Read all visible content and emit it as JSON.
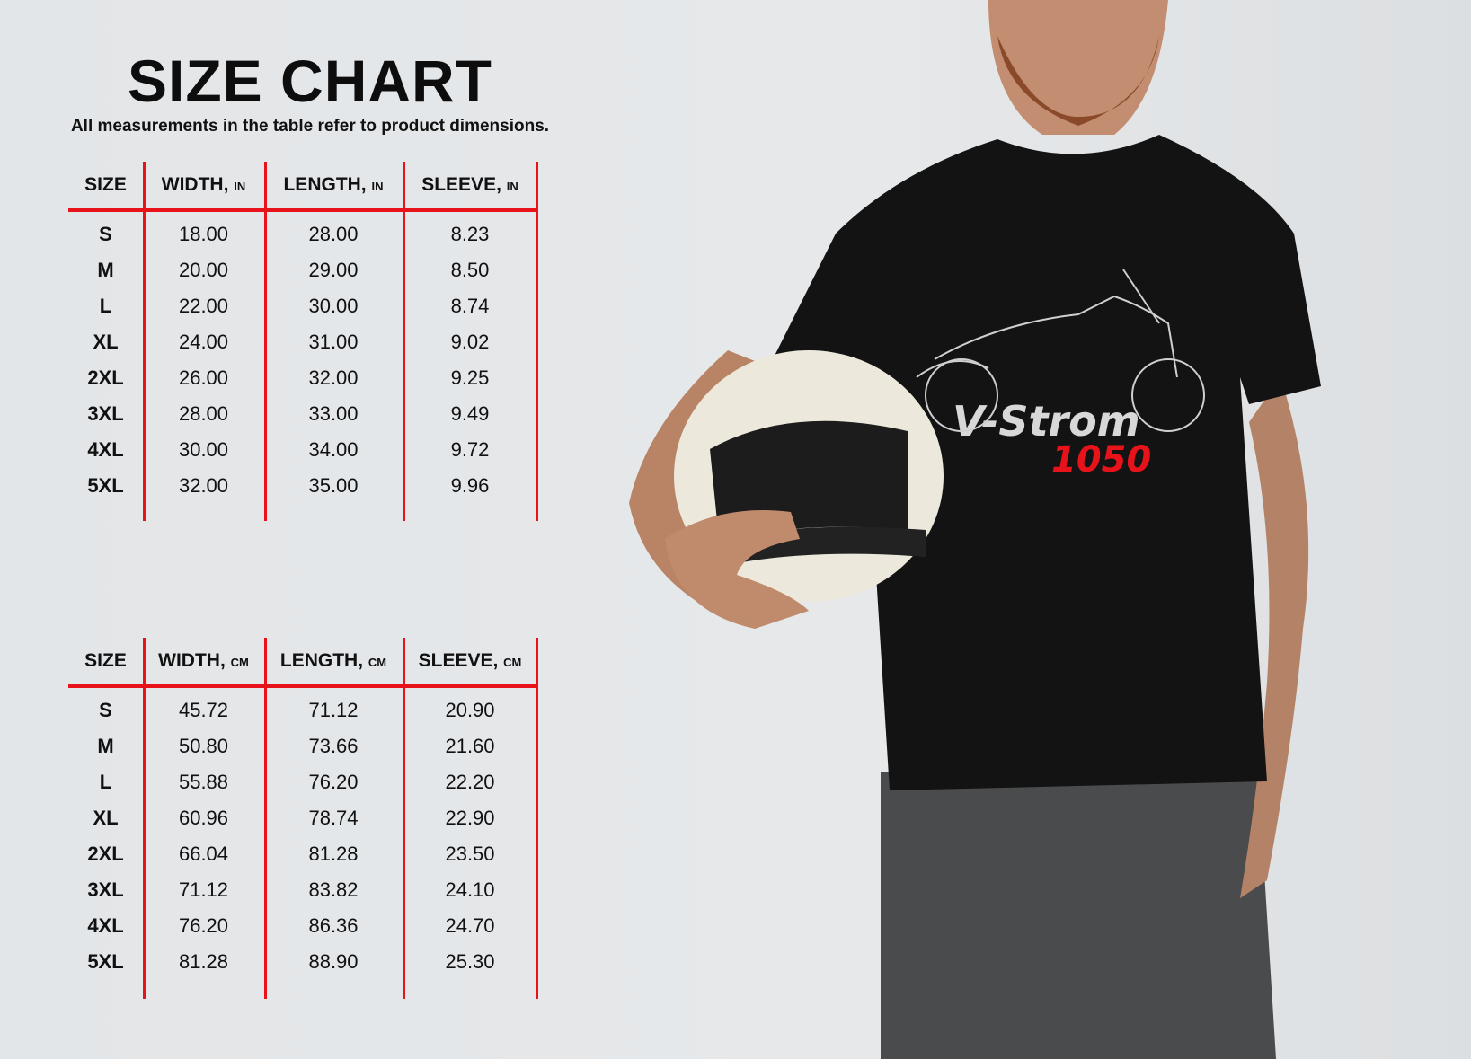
{
  "title": "SIZE CHART",
  "subtitle": "All measurements in the table refer to product dimensions.",
  "tables": [
    {
      "headers": [
        {
          "label": "SIZE",
          "unit": ""
        },
        {
          "label": "WIDTH,",
          "unit": "IN"
        },
        {
          "label": "LENGTH,",
          "unit": "IN"
        },
        {
          "label": "SLEEVE,",
          "unit": "IN"
        }
      ],
      "rows": [
        [
          "S",
          "18.00",
          "28.00",
          "8.23"
        ],
        [
          "M",
          "20.00",
          "29.00",
          "8.50"
        ],
        [
          "L",
          "22.00",
          "30.00",
          "8.74"
        ],
        [
          "XL",
          "24.00",
          "31.00",
          "9.02"
        ],
        [
          "2XL",
          "26.00",
          "32.00",
          "9.25"
        ],
        [
          "3XL",
          "28.00",
          "33.00",
          "9.49"
        ],
        [
          "4XL",
          "30.00",
          "34.00",
          "9.72"
        ],
        [
          "5XL",
          "32.00",
          "35.00",
          "9.96"
        ]
      ]
    },
    {
      "headers": [
        {
          "label": "SIZE",
          "unit": ""
        },
        {
          "label": "WIDTH,",
          "unit": "CM"
        },
        {
          "label": "LENGTH,",
          "unit": "CM"
        },
        {
          "label": "SLEEVE,",
          "unit": "CM"
        }
      ],
      "rows": [
        [
          "S",
          "45.72",
          "71.12",
          "20.90"
        ],
        [
          "M",
          "50.80",
          "73.66",
          "21.60"
        ],
        [
          "L",
          "55.88",
          "76.20",
          "22.20"
        ],
        [
          "XL",
          "60.96",
          "78.74",
          "22.90"
        ],
        [
          "2XL",
          "66.04",
          "81.28",
          "23.50"
        ],
        [
          "3XL",
          "71.12",
          "83.82",
          "24.10"
        ],
        [
          "4XL",
          "76.20",
          "86.36",
          "24.70"
        ],
        [
          "5XL",
          "81.28",
          "88.90",
          "25.30"
        ]
      ]
    }
  ],
  "shirt_print": {
    "line1": "V-Strom",
    "line2": "1050"
  },
  "colors": {
    "accent": "#e8121b",
    "shirt": "#111111",
    "background": "#e4e7e9"
  }
}
